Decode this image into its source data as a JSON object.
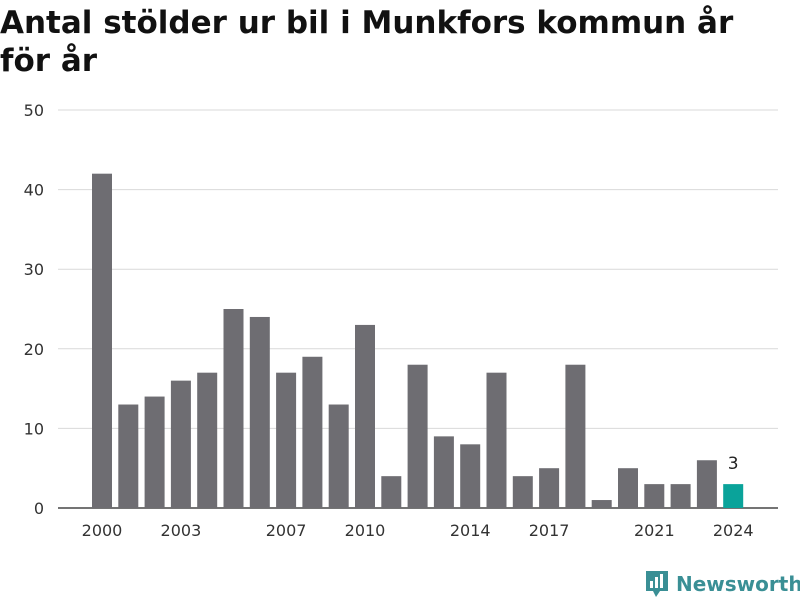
{
  "title": "Antal stölder ur bil i Munkfors kommun år för år",
  "brand": {
    "name": "Newsworthy",
    "icon": "bar-chart-logo-icon"
  },
  "colors": {
    "bar": "#6e6d72",
    "highlight": "#0aa39a",
    "grid": "#d9d9d9",
    "brand": "#3a8f95"
  },
  "chart_data": {
    "type": "bar",
    "x": [
      2000,
      2001,
      2002,
      2003,
      2004,
      2005,
      2006,
      2007,
      2008,
      2009,
      2010,
      2011,
      2012,
      2013,
      2014,
      2015,
      2016,
      2017,
      2018,
      2019,
      2020,
      2021,
      2022,
      2023,
      2024
    ],
    "values": [
      42,
      13,
      14,
      16,
      17,
      25,
      24,
      17,
      19,
      13,
      23,
      4,
      18,
      9,
      8,
      17,
      4,
      5,
      18,
      1,
      5,
      3,
      3,
      6,
      3
    ],
    "xticks": [
      2000,
      2003,
      2007,
      2010,
      2014,
      2017,
      2021,
      2024
    ],
    "yticks": [
      0,
      10,
      20,
      30,
      40,
      50
    ],
    "ylim": [
      0,
      50
    ],
    "highlight": {
      "x": 2024,
      "label": "3"
    },
    "grid": true
  }
}
